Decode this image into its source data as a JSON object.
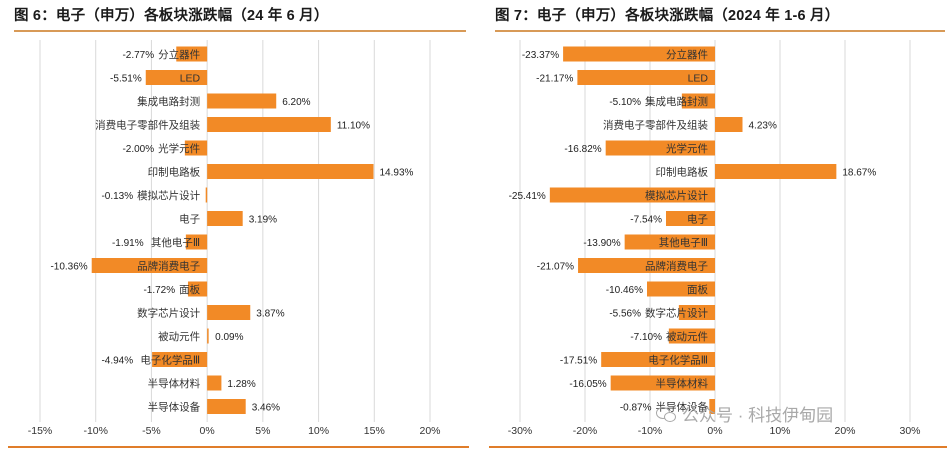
{
  "watermark": {
    "text": "公众号 · 科技伊甸园",
    "icon": "wechat-icon"
  },
  "colors": {
    "bar": "#f28a26",
    "grid": "#d9d9d9",
    "rule_top": "#d89a57",
    "rule_bottom": "#e07d2a"
  },
  "chart_data": [
    {
      "type": "bar",
      "orientation": "horizontal",
      "title": "图 6：电子（申万）各板块涨跌幅（24 年 6 月）",
      "categories": [
        "分立器件",
        "LED",
        "集成电路封测",
        "消费电子零部件及组装",
        "光学元件",
        "印制电路板",
        "模拟芯片设计",
        "电子",
        "其他电子Ⅲ",
        "品牌消费电子",
        "面板",
        "数字芯片设计",
        "被动元件",
        "电子化学品Ⅲ",
        "半导体材料",
        "半导体设备"
      ],
      "values": [
        -2.77,
        -5.51,
        6.2,
        11.1,
        -2.0,
        14.93,
        -0.13,
        3.19,
        -1.91,
        -10.36,
        -1.72,
        3.87,
        0.09,
        -4.94,
        1.28,
        3.46
      ],
      "value_labels": [
        "-2.77%",
        "-5.51%",
        "6.20%",
        "11.10%",
        "-2.00%",
        "14.93%",
        "-0.13%",
        "3.19%",
        "-1.91%",
        "-10.36%",
        "-1.72%",
        "3.87%",
        "0.09%",
        "-4.94%",
        "1.28%",
        "3.46%"
      ],
      "xlim": [
        -15,
        20
      ],
      "ticks": [
        -15,
        -10,
        -5,
        0,
        5,
        10,
        15,
        20
      ],
      "tick_labels": [
        "-15%",
        "-10%",
        "-5%",
        "0%",
        "5%",
        "10%",
        "15%",
        "20%"
      ],
      "grid": "vertical",
      "xlabel": "",
      "ylabel": ""
    },
    {
      "type": "bar",
      "orientation": "horizontal",
      "title": "图 7：电子（申万）各板块涨跌幅（2024 年 1-6 月）",
      "categories": [
        "分立器件",
        "LED",
        "集成电路封测",
        "消费电子零部件及组装",
        "光学元件",
        "印制电路板",
        "模拟芯片设计",
        "电子",
        "其他电子Ⅲ",
        "品牌消费电子",
        "面板",
        "数字芯片设计",
        "被动元件",
        "电子化学品Ⅲ",
        "半导体材料",
        "半导体设备"
      ],
      "values": [
        -23.37,
        -21.17,
        -5.1,
        4.23,
        -16.82,
        18.67,
        -25.41,
        -7.54,
        -13.9,
        -21.07,
        -10.46,
        -5.56,
        -7.1,
        -17.51,
        -16.05,
        -0.87
      ],
      "value_labels": [
        "-23.37%",
        "-21.17%",
        "-5.10%",
        "4.23%",
        "-16.82%",
        "18.67%",
        "-25.41%",
        "-7.54%",
        "-13.90%",
        "-21.07%",
        "-10.46%",
        "-5.56%",
        "-7.10%",
        "-17.51%",
        "-16.05%",
        "-0.87%"
      ],
      "xlim": [
        -30,
        30
      ],
      "ticks": [
        -30,
        -20,
        -10,
        0,
        10,
        20,
        30
      ],
      "tick_labels": [
        "-30%",
        "-20%",
        "-10%",
        "0%",
        "10%",
        "20%",
        "30%"
      ],
      "grid": "vertical",
      "xlabel": "",
      "ylabel": ""
    }
  ]
}
